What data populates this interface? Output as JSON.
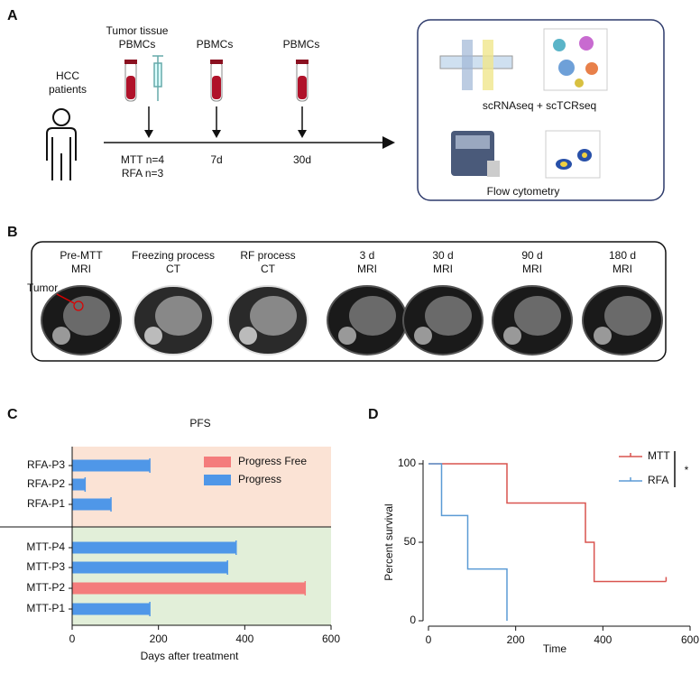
{
  "panel_a": {
    "label": "A",
    "patients": [
      "HCC",
      "patients"
    ],
    "timepoints": [
      {
        "top": [
          "Tumor tissue",
          "PBMCs"
        ],
        "bottom": [
          "MTT n=4",
          "RFA n=3"
        ]
      },
      {
        "top": [
          "PBMCs"
        ],
        "bottom": [
          "7d"
        ]
      },
      {
        "top": [
          "PBMCs"
        ],
        "bottom": [
          "30d"
        ]
      }
    ],
    "assays": [
      "scRNAseq + scTCRseq",
      "Flow cytometry"
    ]
  },
  "panel_b": {
    "label": "B",
    "annotation": "Tumor",
    "images": [
      [
        "Pre-MTT",
        "MRI"
      ],
      [
        "Freezing process",
        "CT"
      ],
      [
        "RF process",
        "CT"
      ],
      [
        "3 d",
        "MRI"
      ],
      [
        "30 d",
        "MRI"
      ],
      [
        "90 d",
        "MRI"
      ],
      [
        "180 d",
        "MRI"
      ]
    ]
  },
  "chart_data": [
    {
      "type": "bar",
      "orientation": "horizontal",
      "panel_label": "C",
      "title": "PFS",
      "categories": [
        "RFA-P3",
        "RFA-P2",
        "RFA-P1",
        "MTT-P4",
        "MTT-P3",
        "MTT-P2",
        "MTT-P1"
      ],
      "series": [
        {
          "name": "Progress Free",
          "color": "#f47c7c",
          "values": [
            null,
            null,
            null,
            null,
            null,
            540,
            null
          ]
        },
        {
          "name": "Progress",
          "color": "#4f97e8",
          "values": [
            180,
            30,
            90,
            380,
            360,
            null,
            180
          ]
        }
      ],
      "xlim": [
        0,
        600
      ],
      "xticks": [
        0,
        200,
        400,
        600
      ],
      "x_label": "Days after treatment"
    },
    {
      "type": "step",
      "panel_label": "D",
      "series": [
        {
          "name": "MTT",
          "color": "#d9534f",
          "x": [
            0,
            180,
            360,
            380,
            545
          ],
          "values": [
            100,
            75,
            50,
            25,
            25
          ]
        },
        {
          "name": "RFA",
          "color": "#5b9bd5",
          "x": [
            0,
            30,
            90,
            180
          ],
          "values": [
            100,
            67,
            33,
            0
          ]
        }
      ],
      "xlim": [
        0,
        600
      ],
      "xticks": [
        0,
        200,
        400,
        600
      ],
      "ylim": [
        0,
        100
      ],
      "yticks": [
        0,
        50,
        100
      ],
      "x_label": "Time",
      "y_label": "Percent survival",
      "annotation": "*"
    }
  ]
}
